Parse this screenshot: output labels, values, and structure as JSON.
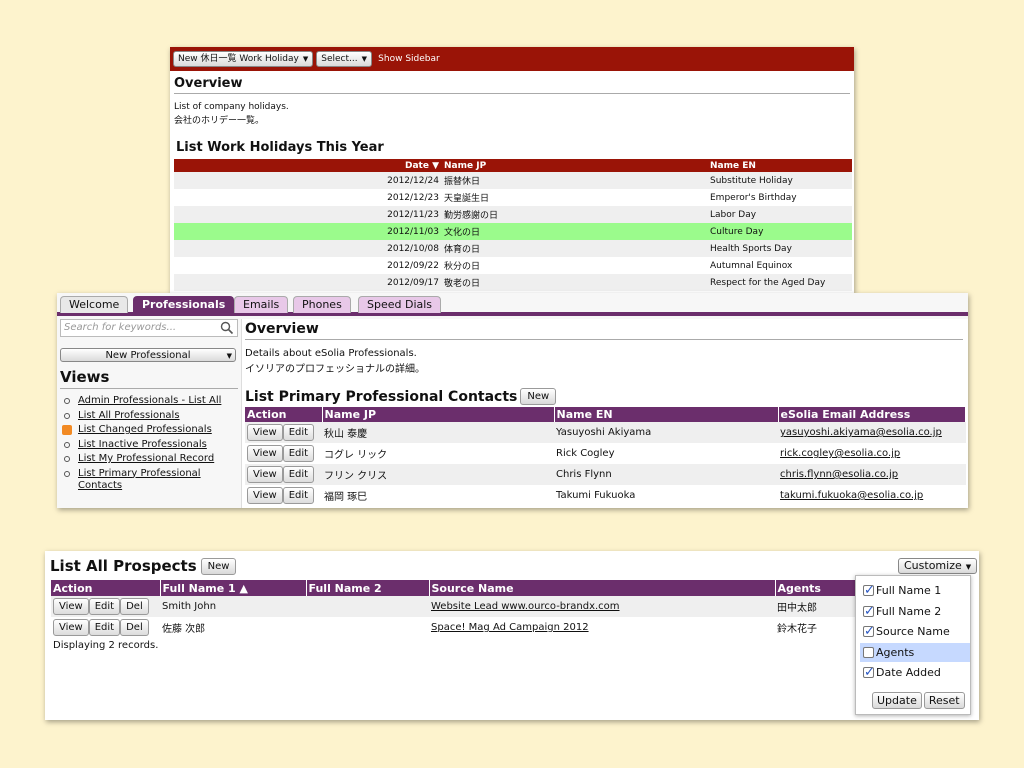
{
  "holidays_panel": {
    "toolbar": {
      "new_select": "New 休日一覧 Work Holiday",
      "select": "Select...",
      "show_sidebar": "Show Sidebar"
    },
    "overview_title": "Overview",
    "desc_en": "List of company holidays.",
    "desc_jp": "会社のホリデー一覧。",
    "list_title": "List Work Holidays This Year",
    "columns": {
      "date": "Date ▼",
      "name_jp": "Name JP",
      "name_en": "Name EN"
    },
    "rows": [
      {
        "date": "2012/12/24",
        "jp": "振替休日",
        "en": "Substitute Holiday"
      },
      {
        "date": "2012/12/23",
        "jp": "天皇誕生日",
        "en": "Emperor's Birthday"
      },
      {
        "date": "2012/11/23",
        "jp": "勤労感謝の日",
        "en": "Labor Day"
      },
      {
        "date": "2012/11/03",
        "jp": "文化の日",
        "en": "Culture Day"
      },
      {
        "date": "2012/10/08",
        "jp": "体育の日",
        "en": "Health Sports Day"
      },
      {
        "date": "2012/09/22",
        "jp": "秋分の日",
        "en": "Autumnal Equinox"
      },
      {
        "date": "2012/09/17",
        "jp": "敬老の日",
        "en": "Respect for the Aged Day"
      }
    ],
    "highlight_color": "#9bfb8c"
  },
  "professionals_panel": {
    "tabs": [
      "Welcome",
      "Professionals",
      "Emails",
      "Phones",
      "Speed Dials"
    ],
    "search_placeholder": "Search for keywords...",
    "new_professional": "New Professional",
    "views_title": "Views",
    "views": [
      "Admin Professionals - List All",
      "List All Professionals",
      "List Changed Professionals",
      "List Inactive Professionals",
      "List My Professional Record",
      "List Primary Professional Contacts"
    ],
    "overview_title": "Overview",
    "desc_en": "Details about eSolia Professionals.",
    "desc_jp": "イソリアのプロフェッショナルの詳細。",
    "list_title": "List Primary Professional Contacts",
    "new_btn": "New",
    "columns": {
      "action": "Action",
      "name_jp": "Name JP",
      "name_en": "Name EN",
      "email": "eSolia Email Address"
    },
    "view_btn": "View",
    "edit_btn": "Edit",
    "rows": [
      {
        "jp": "秋山 泰慶",
        "en": "Yasuyoshi Akiyama",
        "email": "yasuyoshi.akiyama@esolia.co.jp"
      },
      {
        "jp": "コグレ リック",
        "en": "Rick Cogley",
        "email": "rick.cogley@esolia.co.jp"
      },
      {
        "jp": "フリン クリス",
        "en": "Chris Flynn",
        "email": "chris.flynn@esolia.co.jp"
      },
      {
        "jp": "福岡 琢巳",
        "en": "Takumi Fukuoka",
        "email": "takumi.fukuoka@esolia.co.jp"
      }
    ],
    "accent": "#6b2e6c"
  },
  "prospects_panel": {
    "list_title": "List All Prospects",
    "new_btn": "New",
    "customize": "Customize",
    "columns": {
      "action": "Action",
      "full1": "Full Name 1 ▲",
      "full2": "Full Name 2",
      "source": "Source Name",
      "agents": "Agents"
    },
    "view_btn": "View",
    "edit_btn": "Edit",
    "del_btn": "Del",
    "rows": [
      {
        "full1": "Smith John",
        "full2": "",
        "source": "Website Lead www.ourco-brandx.com",
        "agents": "田中太郎"
      },
      {
        "full1": "佐藤 次郎",
        "full2": "",
        "source": "Space! Mag Ad Campaign 2012",
        "agents": "鈴木花子"
      }
    ],
    "displaying": "Displaying 2 records.",
    "customize_options": [
      {
        "label": "Full Name 1",
        "checked": true
      },
      {
        "label": "Full Name 2",
        "checked": true
      },
      {
        "label": "Source Name",
        "checked": true
      },
      {
        "label": "Agents",
        "checked": false
      },
      {
        "label": "Date Added",
        "checked": true
      }
    ],
    "update_btn": "Update",
    "reset_btn": "Reset"
  }
}
